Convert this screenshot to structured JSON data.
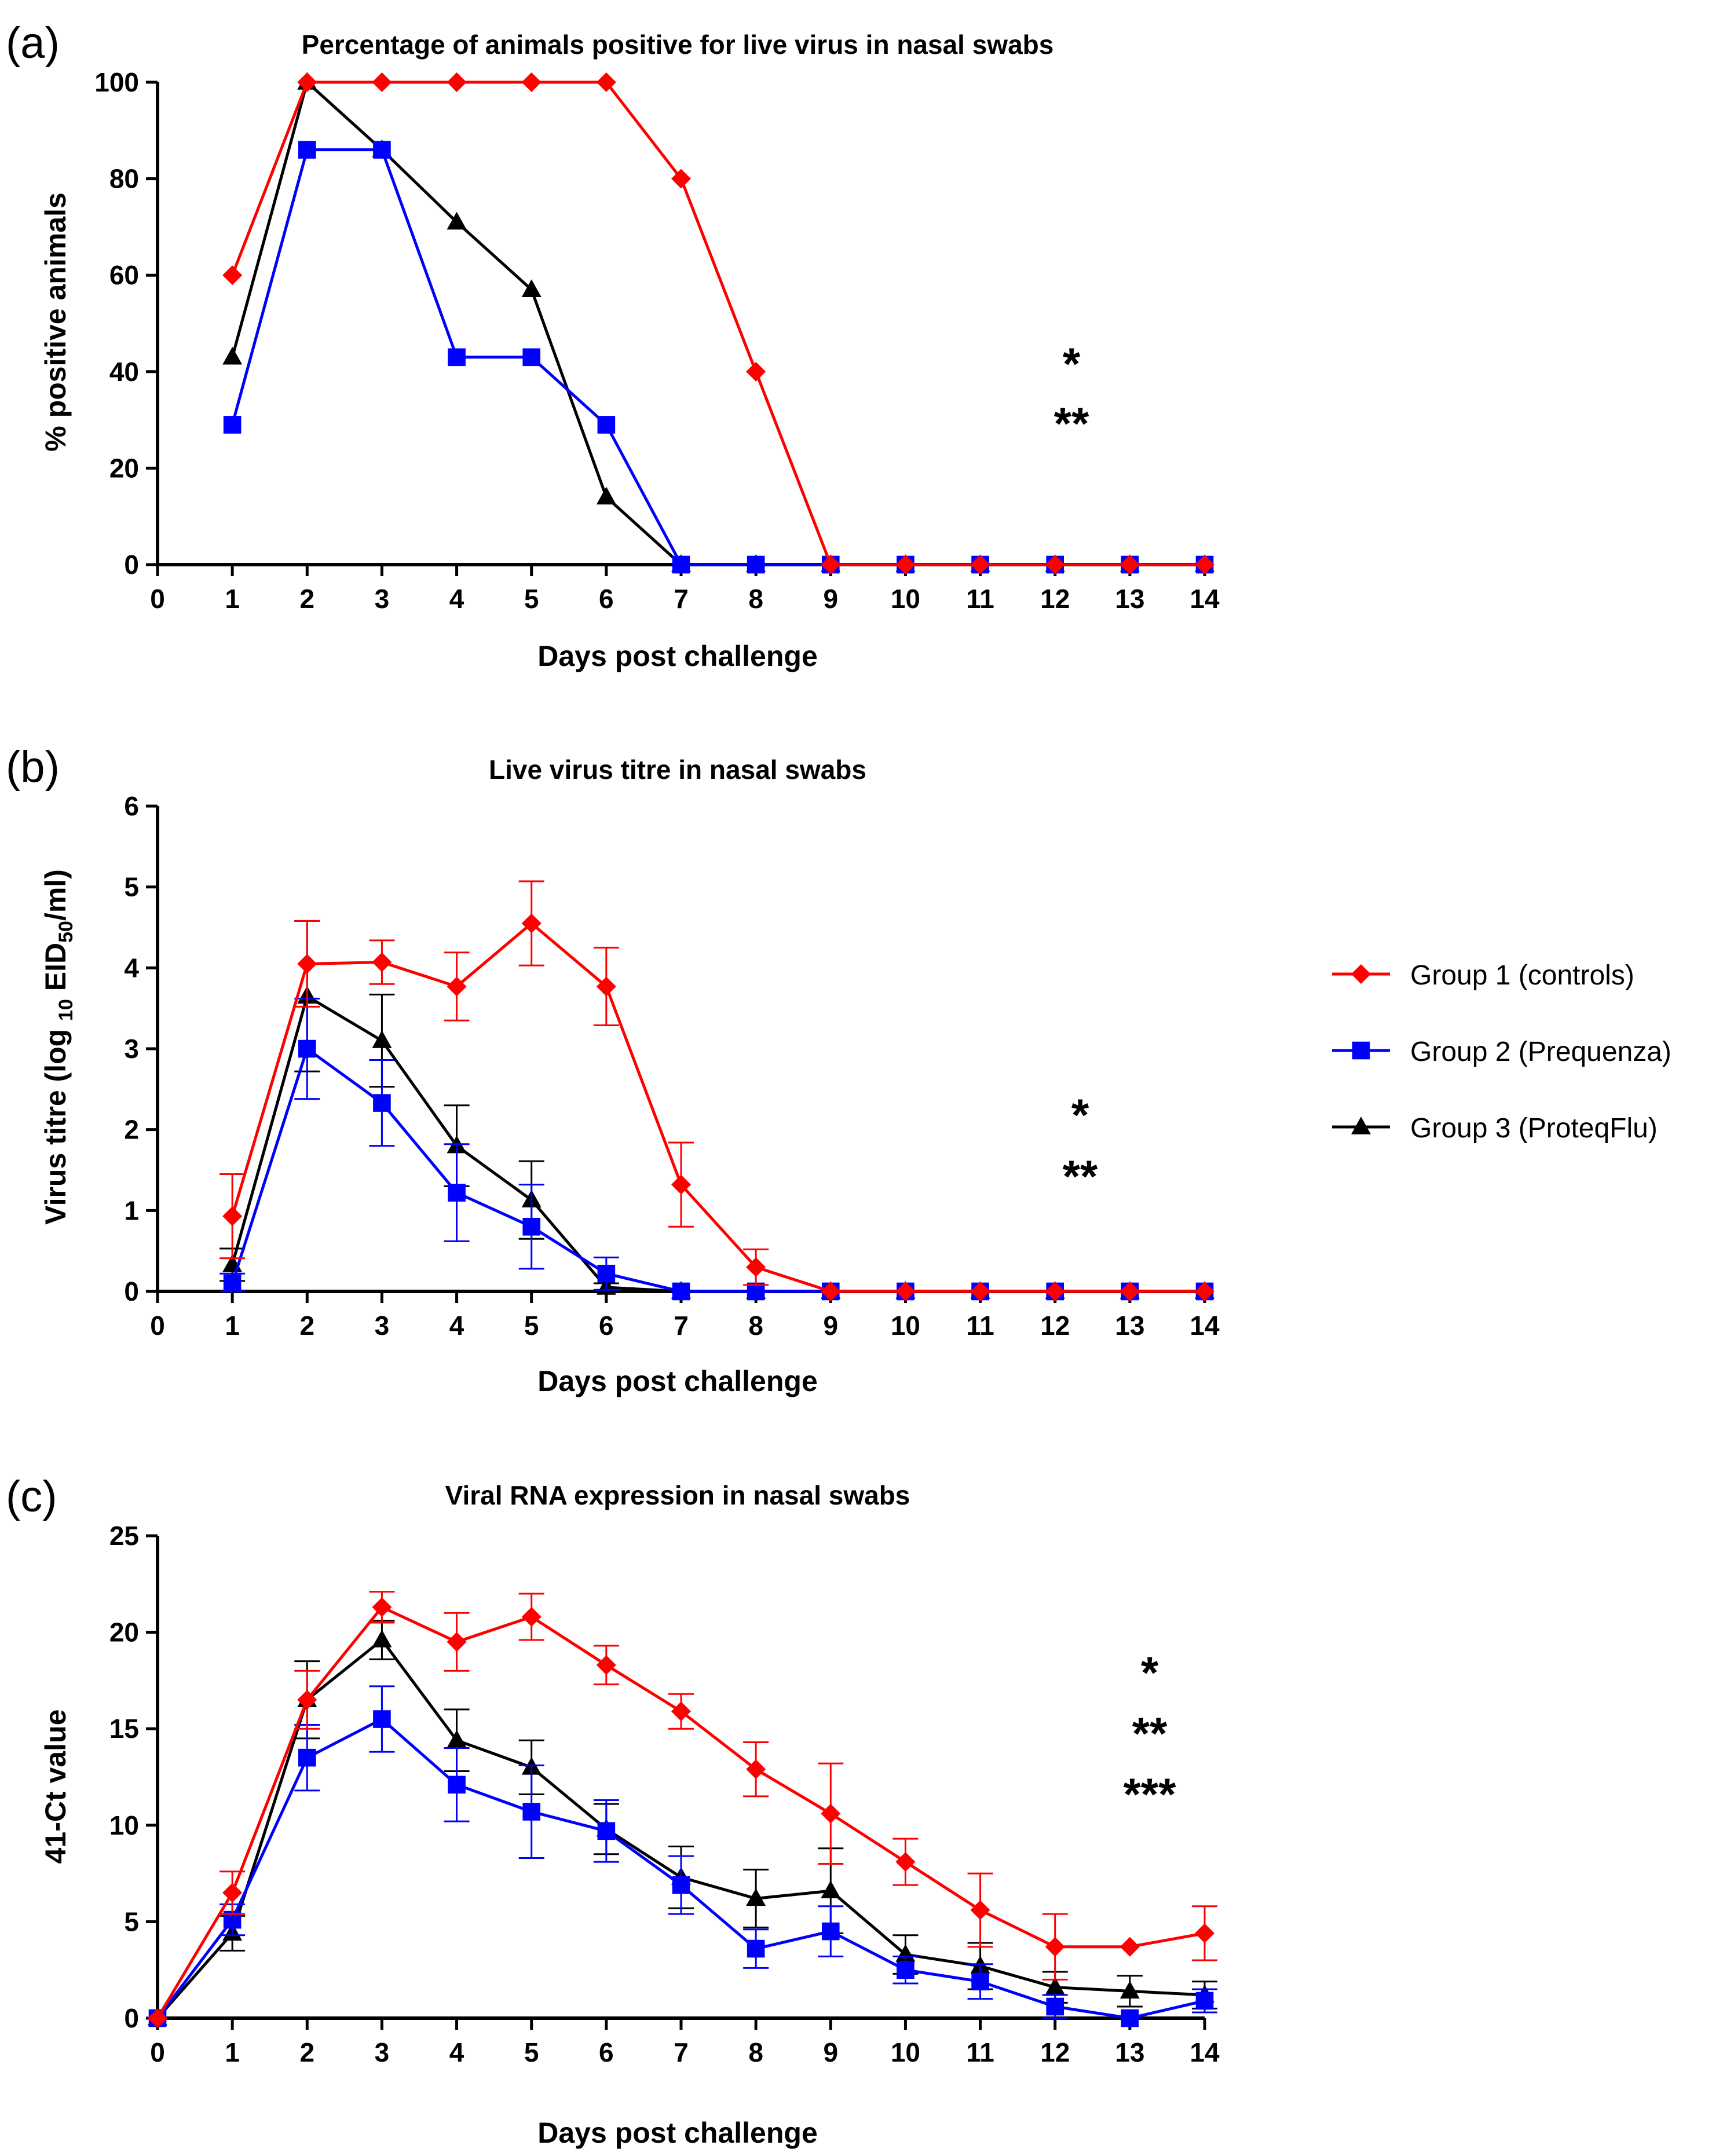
{
  "series_style": {
    "Group 1 (controls)": {
      "color": "#ff0000",
      "marker": "diamond"
    },
    "Group 2 (Prequenza)": {
      "color": "#0000ff",
      "marker": "square"
    },
    "Group 3 (ProteqFlu)": {
      "color": "#000000",
      "marker": "triangle"
    }
  },
  "legend": [
    "Group 1 (controls)",
    "Group 2 (Prequenza)",
    "Group 3 (ProteqFlu)"
  ],
  "chart_data": [
    {
      "type": "line",
      "panel": "(a)",
      "title": "Percentage of animals positive for live virus in nasal swabs",
      "xlabel": "Days post challenge",
      "ylabel": "% positive animals",
      "xlim": [
        0,
        14
      ],
      "ylim": [
        0,
        100
      ],
      "xticks": [
        0,
        1,
        2,
        3,
        4,
        5,
        6,
        7,
        8,
        9,
        10,
        11,
        12,
        13,
        14
      ],
      "yticks": [
        0,
        20,
        40,
        60,
        80,
        100
      ],
      "annotations": [
        "*",
        "**"
      ],
      "series": [
        {
          "name": "Group 1 (controls)",
          "x": [
            1,
            2,
            3,
            4,
            5,
            6,
            7,
            8,
            9,
            10,
            11,
            12,
            13,
            14
          ],
          "values": [
            60,
            100,
            100,
            100,
            100,
            100,
            80,
            40,
            0,
            0,
            0,
            0,
            0,
            0
          ]
        },
        {
          "name": "Group 2 (Prequenza)",
          "x": [
            1,
            2,
            3,
            4,
            5,
            6,
            7,
            8,
            9,
            10,
            11,
            12,
            13,
            14
          ],
          "values": [
            29,
            86,
            86,
            43,
            43,
            29,
            0,
            0,
            0,
            0,
            0,
            0,
            0,
            0
          ]
        },
        {
          "name": "Group 3 (ProteqFlu)",
          "x": [
            1,
            2,
            3,
            4,
            5,
            6,
            7,
            8,
            9,
            10,
            11,
            12,
            13,
            14
          ],
          "values": [
            43,
            100,
            86,
            71,
            57,
            14,
            0,
            0,
            0,
            0,
            0,
            0,
            0,
            0
          ]
        }
      ]
    },
    {
      "type": "line",
      "panel": "(b)",
      "title": "Live virus titre in nasal swabs",
      "xlabel": "Days post challenge",
      "ylabel_parts": [
        "Virus titre (log ",
        "10",
        " EID",
        "50",
        "/ml)"
      ],
      "xlim": [
        0,
        14
      ],
      "ylim": [
        0,
        6
      ],
      "xticks": [
        0,
        1,
        2,
        3,
        4,
        5,
        6,
        7,
        8,
        9,
        10,
        11,
        12,
        13,
        14
      ],
      "yticks": [
        0,
        1,
        2,
        3,
        4,
        5,
        6
      ],
      "annotations": [
        "*",
        "**"
      ],
      "series": [
        {
          "name": "Group 1 (controls)",
          "x": [
            1,
            2,
            3,
            4,
            5,
            6,
            7,
            8,
            9,
            10,
            11,
            12,
            13,
            14
          ],
          "values": [
            0.93,
            4.05,
            4.07,
            3.77,
            4.55,
            3.77,
            1.32,
            0.3,
            0,
            0,
            0,
            0,
            0,
            0
          ],
          "error": [
            0.52,
            0.53,
            0.27,
            0.42,
            0.52,
            0.48,
            0.52,
            0.22,
            0,
            0,
            0,
            0,
            0,
            0
          ]
        },
        {
          "name": "Group 2 (Prequenza)",
          "x": [
            1,
            2,
            3,
            4,
            5,
            6,
            7,
            8,
            9,
            10,
            11,
            12,
            13,
            14
          ],
          "values": [
            0.1,
            3.0,
            2.33,
            1.22,
            0.8,
            0.22,
            0,
            0,
            0,
            0,
            0,
            0,
            0,
            0
          ],
          "error": [
            0.12,
            0.62,
            0.53,
            0.6,
            0.52,
            0.2,
            0,
            0,
            0,
            0,
            0,
            0,
            0,
            0
          ]
        },
        {
          "name": "Group 3 (ProteqFlu)",
          "x": [
            1,
            2,
            3,
            4,
            5,
            6,
            7,
            8,
            9,
            10,
            11,
            12,
            13,
            14
          ],
          "values": [
            0.33,
            3.65,
            3.1,
            1.8,
            1.13,
            0.05,
            0,
            0,
            0,
            0,
            0,
            0,
            0,
            0
          ],
          "error": [
            0.2,
            0.93,
            0.57,
            0.5,
            0.48,
            0.05,
            0,
            0,
            0,
            0,
            0,
            0,
            0,
            0
          ]
        }
      ]
    },
    {
      "type": "line",
      "panel": "(c)",
      "title": "Viral RNA expression in nasal swabs",
      "xlabel": "Days post challenge",
      "ylabel": "41-Ct value",
      "xlim": [
        0,
        14
      ],
      "ylim": [
        0,
        25
      ],
      "xticks": [
        0,
        1,
        2,
        3,
        4,
        5,
        6,
        7,
        8,
        9,
        10,
        11,
        12,
        13,
        14
      ],
      "yticks": [
        0,
        5,
        10,
        15,
        20,
        25
      ],
      "annotations": [
        "*",
        "**",
        "***"
      ],
      "series": [
        {
          "name": "Group 1 (controls)",
          "x": [
            0,
            1,
            2,
            3,
            4,
            5,
            6,
            7,
            8,
            9,
            10,
            11,
            12,
            13,
            14
          ],
          "values": [
            0,
            6.5,
            16.5,
            21.3,
            19.5,
            20.8,
            18.3,
            15.9,
            12.9,
            10.6,
            8.1,
            5.6,
            3.7,
            3.7,
            4.4
          ],
          "error": [
            0,
            1.1,
            1.5,
            0.8,
            1.5,
            1.2,
            1.0,
            0.9,
            1.4,
            2.6,
            1.2,
            1.9,
            1.7,
            0,
            1.4
          ]
        },
        {
          "name": "Group 2 (Prequenza)",
          "x": [
            0,
            1,
            2,
            3,
            4,
            5,
            6,
            7,
            8,
            9,
            10,
            11,
            12,
            13,
            14
          ],
          "values": [
            0,
            5.1,
            13.5,
            15.5,
            12.1,
            10.7,
            9.7,
            6.9,
            3.6,
            4.5,
            2.5,
            1.9,
            0.6,
            0,
            0.9
          ],
          "error": [
            0,
            0.8,
            1.7,
            1.7,
            1.9,
            2.4,
            1.6,
            1.5,
            1.0,
            1.3,
            0.7,
            0.9,
            0.6,
            0,
            0.6
          ]
        },
        {
          "name": "Group 3 (ProteqFlu)",
          "x": [
            0,
            1,
            2,
            3,
            4,
            5,
            6,
            7,
            8,
            9,
            10,
            11,
            12,
            13,
            14
          ],
          "values": [
            0,
            4.4,
            16.5,
            19.6,
            14.4,
            13.0,
            9.8,
            7.3,
            6.2,
            6.6,
            3.3,
            2.7,
            1.6,
            1.4,
            1.2
          ],
          "error": [
            0,
            0.9,
            2.0,
            1.0,
            1.6,
            1.4,
            1.3,
            1.6,
            1.5,
            2.2,
            1.0,
            1.2,
            0.8,
            0.8,
            0.7
          ]
        }
      ]
    }
  ]
}
